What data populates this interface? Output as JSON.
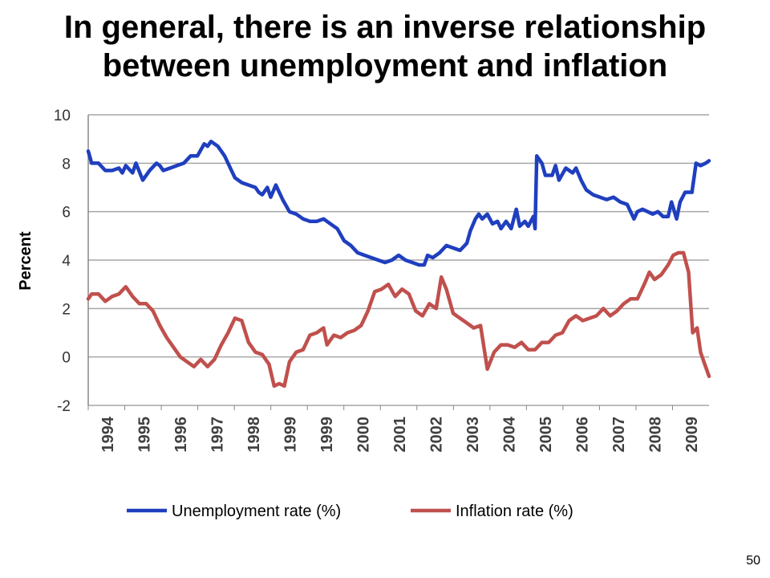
{
  "slide": {
    "title_line1": "In general, there is an inverse relationship",
    "title_line2": "between unemployment and inflation",
    "page_number": "50"
  },
  "chart_data": {
    "type": "line",
    "ylabel": "Percent",
    "xlabel": "",
    "ylim": [
      -2,
      10
    ],
    "yticks": [
      "10",
      "8",
      "6",
      "4",
      "2",
      "0",
      "-2"
    ],
    "x_tick_labels": [
      "1994",
      "1995",
      "1996",
      "1997",
      "1998",
      "1999",
      "1999",
      "2000",
      "2001",
      "2002",
      "2003",
      "2004",
      "2005",
      "2006",
      "2007",
      "2008",
      "2009"
    ],
    "grid": true,
    "legend_position": "bottom",
    "colors": {
      "unemployment": "#1f3fbf",
      "inflation": "#c0504d",
      "grid": "#a6a6a6"
    },
    "x_note": "x values are fractional years; ticks are evenly spaced labels",
    "series": [
      {
        "name": "Unemployment rate (%)",
        "points": [
          [
            1994.0,
            8.5
          ],
          [
            1994.1,
            8.0
          ],
          [
            1994.3,
            8.0
          ],
          [
            1994.5,
            7.7
          ],
          [
            1994.7,
            7.7
          ],
          [
            1994.9,
            7.8
          ],
          [
            1995.0,
            7.6
          ],
          [
            1995.1,
            7.9
          ],
          [
            1995.3,
            7.6
          ],
          [
            1995.4,
            8.0
          ],
          [
            1995.6,
            7.3
          ],
          [
            1995.8,
            7.7
          ],
          [
            1996.0,
            8.0
          ],
          [
            1996.1,
            7.9
          ],
          [
            1996.2,
            7.7
          ],
          [
            1996.4,
            7.8
          ],
          [
            1996.6,
            7.9
          ],
          [
            1996.8,
            8.0
          ],
          [
            1997.0,
            8.3
          ],
          [
            1997.2,
            8.3
          ],
          [
            1997.4,
            8.8
          ],
          [
            1997.5,
            8.7
          ],
          [
            1997.6,
            8.9
          ],
          [
            1997.8,
            8.7
          ],
          [
            1998.0,
            8.3
          ],
          [
            1998.2,
            7.7
          ],
          [
            1998.3,
            7.4
          ],
          [
            1998.5,
            7.2
          ],
          [
            1998.7,
            7.1
          ],
          [
            1998.9,
            7.0
          ],
          [
            1999.0,
            6.8
          ],
          [
            1999.1,
            6.7
          ],
          [
            1999.25,
            7.0
          ],
          [
            1999.35,
            6.6
          ],
          [
            1999.5,
            7.1
          ],
          [
            1999.7,
            6.5
          ],
          [
            1999.9,
            6.0
          ],
          [
            2000.1,
            5.9
          ],
          [
            2000.3,
            5.7
          ],
          [
            2000.5,
            5.6
          ],
          [
            2000.7,
            5.6
          ],
          [
            2000.9,
            5.7
          ],
          [
            2001.1,
            5.5
          ],
          [
            2001.3,
            5.3
          ],
          [
            2001.5,
            4.8
          ],
          [
            2001.7,
            4.6
          ],
          [
            2001.9,
            4.3
          ],
          [
            2002.1,
            4.2
          ],
          [
            2002.3,
            4.1
          ],
          [
            2002.5,
            4.0
          ],
          [
            2002.7,
            3.9
          ],
          [
            2002.9,
            4.0
          ],
          [
            2003.1,
            4.2
          ],
          [
            2003.3,
            4.0
          ],
          [
            2003.5,
            3.9
          ],
          [
            2003.7,
            3.8
          ],
          [
            2003.85,
            3.8
          ],
          [
            2003.95,
            4.2
          ],
          [
            2004.1,
            4.1
          ],
          [
            2004.3,
            4.3
          ],
          [
            2004.5,
            4.6
          ],
          [
            2004.7,
            4.5
          ],
          [
            2004.9,
            4.4
          ],
          [
            2005.1,
            4.7
          ],
          [
            2005.2,
            5.2
          ],
          [
            2005.35,
            5.7
          ],
          [
            2005.45,
            5.9
          ],
          [
            2005.55,
            5.7
          ],
          [
            2005.7,
            5.9
          ],
          [
            2005.85,
            5.5
          ],
          [
            2006.0,
            5.6
          ],
          [
            2006.1,
            5.3
          ],
          [
            2006.25,
            5.6
          ],
          [
            2006.4,
            5.3
          ],
          [
            2006.55,
            6.1
          ],
          [
            2006.65,
            5.4
          ],
          [
            2006.8,
            5.6
          ],
          [
            2006.9,
            5.4
          ],
          [
            2007.05,
            5.8
          ],
          [
            2007.1,
            5.3
          ],
          [
            2007.15,
            8.3
          ],
          [
            2007.3,
            8.0
          ],
          [
            2007.4,
            7.5
          ],
          [
            2007.6,
            7.5
          ],
          [
            2007.7,
            7.9
          ],
          [
            2007.8,
            7.3
          ],
          [
            2008.0,
            7.8
          ],
          [
            2008.2,
            7.6
          ],
          [
            2008.3,
            7.8
          ],
          [
            2008.45,
            7.3
          ],
          [
            2008.6,
            6.9
          ],
          [
            2008.8,
            6.7
          ],
          [
            2009.0,
            6.6
          ],
          [
            2009.2,
            6.5
          ],
          [
            2009.4,
            6.6
          ],
          [
            2009.6,
            6.4
          ],
          [
            2009.8,
            6.3
          ],
          [
            2010.0,
            5.7
          ],
          [
            2010.1,
            6.0
          ],
          [
            2010.25,
            6.1
          ],
          [
            2010.4,
            6.0
          ],
          [
            2010.55,
            5.9
          ],
          [
            2010.7,
            6.0
          ],
          [
            2010.85,
            5.8
          ],
          [
            2011.0,
            5.8
          ],
          [
            2011.1,
            6.4
          ],
          [
            2011.25,
            5.7
          ],
          [
            2011.35,
            6.4
          ],
          [
            2011.5,
            6.8
          ],
          [
            2011.7,
            6.8
          ],
          [
            2011.82,
            8.0
          ],
          [
            2011.95,
            7.9
          ],
          [
            2012.1,
            8.0
          ],
          [
            2012.2,
            8.1
          ]
        ]
      },
      {
        "name": "Inflation rate (%)",
        "points": [
          [
            1994.0,
            2.4
          ],
          [
            1994.1,
            2.6
          ],
          [
            1994.3,
            2.6
          ],
          [
            1994.5,
            2.3
          ],
          [
            1994.7,
            2.5
          ],
          [
            1994.9,
            2.6
          ],
          [
            1995.1,
            2.9
          ],
          [
            1995.3,
            2.5
          ],
          [
            1995.5,
            2.2
          ],
          [
            1995.7,
            2.2
          ],
          [
            1995.9,
            1.9
          ],
          [
            1996.1,
            1.3
          ],
          [
            1996.3,
            0.8
          ],
          [
            1996.5,
            0.4
          ],
          [
            1996.7,
            0.0
          ],
          [
            1996.9,
            -0.2
          ],
          [
            1997.1,
            -0.4
          ],
          [
            1997.3,
            -0.1
          ],
          [
            1997.5,
            -0.4
          ],
          [
            1997.7,
            -0.1
          ],
          [
            1997.9,
            0.5
          ],
          [
            1998.1,
            1.0
          ],
          [
            1998.3,
            1.6
          ],
          [
            1998.5,
            1.5
          ],
          [
            1998.7,
            0.6
          ],
          [
            1998.9,
            0.2
          ],
          [
            1999.1,
            0.1
          ],
          [
            1999.3,
            -0.3
          ],
          [
            1999.45,
            -1.2
          ],
          [
            1999.6,
            -1.1
          ],
          [
            1999.75,
            -1.2
          ],
          [
            1999.9,
            -0.2
          ],
          [
            2000.1,
            0.2
          ],
          [
            2000.3,
            0.3
          ],
          [
            2000.5,
            0.9
          ],
          [
            2000.7,
            1.0
          ],
          [
            2000.9,
            1.2
          ],
          [
            2001.0,
            0.5
          ],
          [
            2001.2,
            0.9
          ],
          [
            2001.4,
            0.8
          ],
          [
            2001.6,
            1.0
          ],
          [
            2001.8,
            1.1
          ],
          [
            2002.0,
            1.3
          ],
          [
            2002.2,
            1.9
          ],
          [
            2002.4,
            2.7
          ],
          [
            2002.6,
            2.8
          ],
          [
            2002.8,
            3.0
          ],
          [
            2003.0,
            2.5
          ],
          [
            2003.2,
            2.8
          ],
          [
            2003.4,
            2.6
          ],
          [
            2003.6,
            1.9
          ],
          [
            2003.8,
            1.7
          ],
          [
            2004.0,
            2.2
          ],
          [
            2004.2,
            2.0
          ],
          [
            2004.35,
            3.3
          ],
          [
            2004.5,
            2.8
          ],
          [
            2004.7,
            1.8
          ],
          [
            2004.9,
            1.6
          ],
          [
            2005.1,
            1.4
          ],
          [
            2005.3,
            1.2
          ],
          [
            2005.5,
            1.3
          ],
          [
            2005.7,
            -0.5
          ],
          [
            2005.9,
            0.2
          ],
          [
            2006.1,
            0.5
          ],
          [
            2006.3,
            0.5
          ],
          [
            2006.5,
            0.4
          ],
          [
            2006.7,
            0.6
          ],
          [
            2006.9,
            0.3
          ],
          [
            2007.1,
            0.3
          ],
          [
            2007.3,
            0.6
          ],
          [
            2007.5,
            0.6
          ],
          [
            2007.7,
            0.9
          ],
          [
            2007.9,
            1.0
          ],
          [
            2008.1,
            1.5
          ],
          [
            2008.3,
            1.7
          ],
          [
            2008.5,
            1.5
          ],
          [
            2008.7,
            1.6
          ],
          [
            2008.9,
            1.7
          ],
          [
            2009.1,
            2.0
          ],
          [
            2009.3,
            1.7
          ],
          [
            2009.5,
            1.9
          ],
          [
            2009.7,
            2.2
          ],
          [
            2009.9,
            2.4
          ],
          [
            2010.1,
            2.4
          ],
          [
            2010.3,
            3.0
          ],
          [
            2010.45,
            3.5
          ],
          [
            2010.6,
            3.2
          ],
          [
            2010.8,
            3.4
          ],
          [
            2011.0,
            3.8
          ],
          [
            2011.15,
            4.2
          ],
          [
            2011.3,
            4.3
          ],
          [
            2011.45,
            4.3
          ],
          [
            2011.6,
            3.5
          ],
          [
            2011.72,
            1.0
          ],
          [
            2011.85,
            1.2
          ],
          [
            2011.95,
            0.2
          ],
          [
            2012.05,
            -0.2
          ],
          [
            2012.2,
            -0.8
          ]
        ]
      }
    ]
  }
}
